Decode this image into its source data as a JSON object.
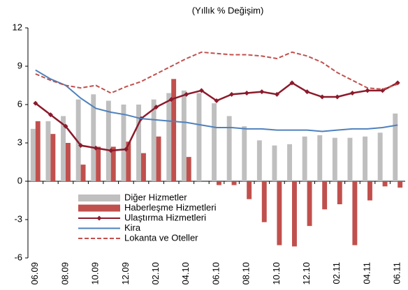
{
  "chart_data": {
    "type": "bar",
    "title": "(Yıllık % Değişim)",
    "categories": [
      "06.09",
      null,
      "08.09",
      null,
      "10.09",
      null,
      "12.09",
      null,
      "02.10",
      null,
      "04.10",
      null,
      "06.10",
      null,
      "08.10",
      null,
      "10.10",
      null,
      "12.10",
      null,
      "02.11",
      null,
      "04.11",
      null,
      "06.11"
    ],
    "ylim": [
      -6,
      12
    ],
    "yticks": [
      -6,
      -3,
      0,
      3,
      6,
      9,
      12
    ],
    "series": [
      {
        "name": "Diğer Hizmetler",
        "type": "bar",
        "color": "#bfbfbf",
        "values": [
          4.1,
          4.7,
          5.1,
          6.4,
          6.8,
          6.3,
          6.0,
          6.0,
          6.4,
          6.9,
          7.1,
          6.9,
          6.1,
          5.1,
          4.3,
          3.2,
          2.8,
          2.9,
          3.5,
          3.6,
          3.4,
          3.4,
          3.5,
          3.8,
          5.3
        ]
      },
      {
        "name": "Haberleşme Hizmetleri",
        "type": "bar",
        "color": "#c0504d",
        "values": [
          4.7,
          3.7,
          3.0,
          1.3,
          2.7,
          2.7,
          3.1,
          2.2,
          3.5,
          8.0,
          1.9,
          0,
          -0.3,
          -0.3,
          -1.4,
          -3.2,
          -5.0,
          -5.1,
          -3.5,
          -2.2,
          -1.8,
          -5.0,
          -1.5,
          -0.4,
          -0.5
        ]
      },
      {
        "name": "Ulaştırma Hizmetleri",
        "type": "line",
        "markers": true,
        "color": "#8b1a2b",
        "values": [
          6.1,
          5.2,
          4.3,
          2.8,
          2.6,
          2.4,
          2.5,
          4.9,
          5.8,
          6.4,
          6.8,
          7.1,
          6.3,
          6.8,
          6.9,
          7.0,
          6.8,
          7.7,
          7.0,
          6.6,
          6.6,
          6.9,
          7.1,
          7.1,
          7.7
        ]
      },
      {
        "name": "Kira",
        "type": "line",
        "color": "#4f81bd",
        "values": [
          8.7,
          8.0,
          7.5,
          6.5,
          5.7,
          5.4,
          5.2,
          4.9,
          4.8,
          4.7,
          4.6,
          4.4,
          4.2,
          4.2,
          4.1,
          4.1,
          4.0,
          4.0,
          4.0,
          3.9,
          4.0,
          4.1,
          4.1,
          4.2,
          4.4
        ]
      },
      {
        "name": "Lokanta ve Oteller",
        "type": "line",
        "dashed": true,
        "color": "#c0504d",
        "values": [
          8.4,
          7.9,
          7.5,
          7.3,
          7.5,
          6.9,
          7.4,
          7.8,
          8.4,
          9.0,
          9.6,
          10.1,
          10.0,
          9.9,
          9.9,
          9.8,
          9.6,
          10.1,
          9.8,
          9.3,
          8.5,
          7.9,
          7.3,
          7.2,
          7.6
        ]
      }
    ]
  }
}
